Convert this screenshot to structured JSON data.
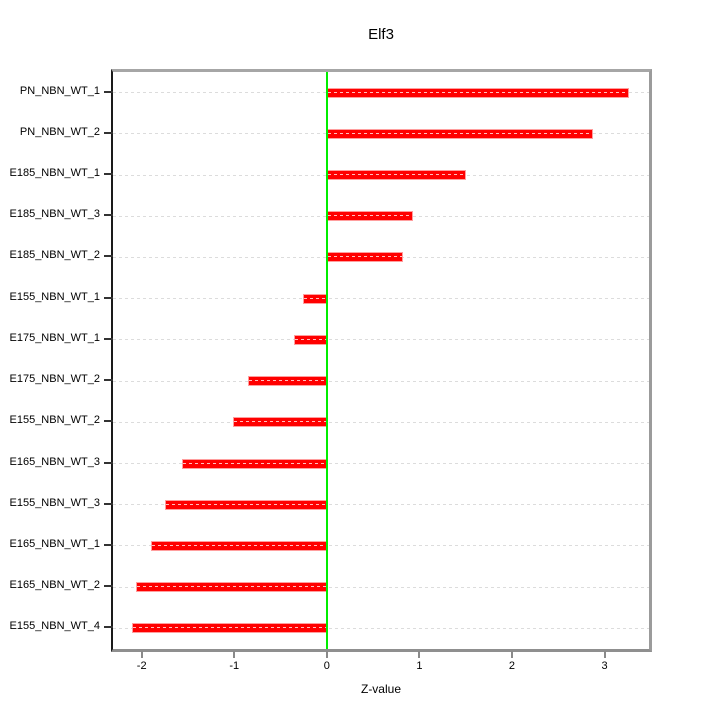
{
  "chart": {
    "title": "Elf3",
    "xlabel": "Z-value"
  },
  "chart_data": {
    "type": "bar",
    "orientation": "horizontal",
    "title": "Elf3",
    "xlabel": "Z-value",
    "ylabel": "",
    "categories": [
      "PN_NBN_WT_1",
      "PN_NBN_WT_2",
      "E185_NBN_WT_1",
      "E185_NBN_WT_3",
      "E185_NBN_WT_2",
      "E155_NBN_WT_1",
      "E175_NBN_WT_1",
      "E175_NBN_WT_2",
      "E155_NBN_WT_2",
      "E165_NBN_WT_3",
      "E155_NBN_WT_3",
      "E165_NBN_WT_1",
      "E165_NBN_WT_2",
      "E155_NBN_WT_4"
    ],
    "values": [
      3.25,
      2.86,
      1.49,
      0.92,
      0.81,
      -0.26,
      -0.36,
      -0.85,
      -1.01,
      -1.57,
      -1.75,
      -1.9,
      -2.06,
      -2.11
    ],
    "xlim": [
      -2.31,
      3.48
    ],
    "xticks": [
      -2,
      -1,
      0,
      1,
      2,
      3
    ],
    "reference_line_x": 0,
    "grid": "dashed horizontal line per category row",
    "legend": "none",
    "colors": {
      "bar_fill": "#ff0000",
      "bar_border": "#ff9e9e",
      "reference_line": "#00ee00",
      "gridline": "#dcdcdc",
      "frame": "#9b9b9b",
      "text": "#000000"
    }
  }
}
